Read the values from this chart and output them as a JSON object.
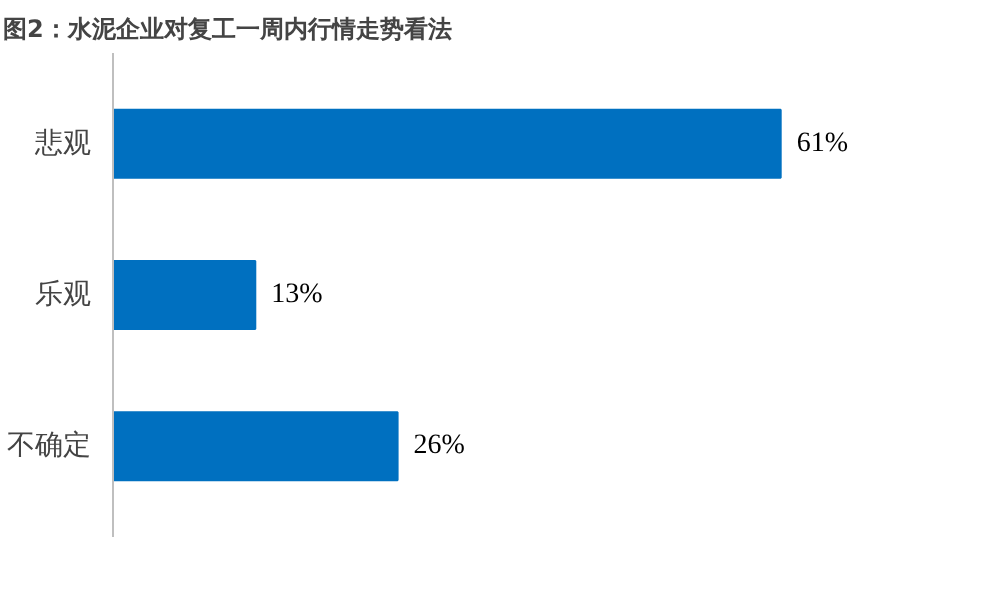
{
  "chart_data": {
    "type": "bar",
    "orientation": "horizontal",
    "title": "图2：水泥企业对复工一周内行情走势看法",
    "categories": [
      "悲观",
      "乐观",
      "不确定"
    ],
    "values": [
      61,
      13,
      26
    ],
    "value_labels": [
      "61%",
      "13%",
      "26%"
    ],
    "color": "#0070c0",
    "grid": false
  }
}
